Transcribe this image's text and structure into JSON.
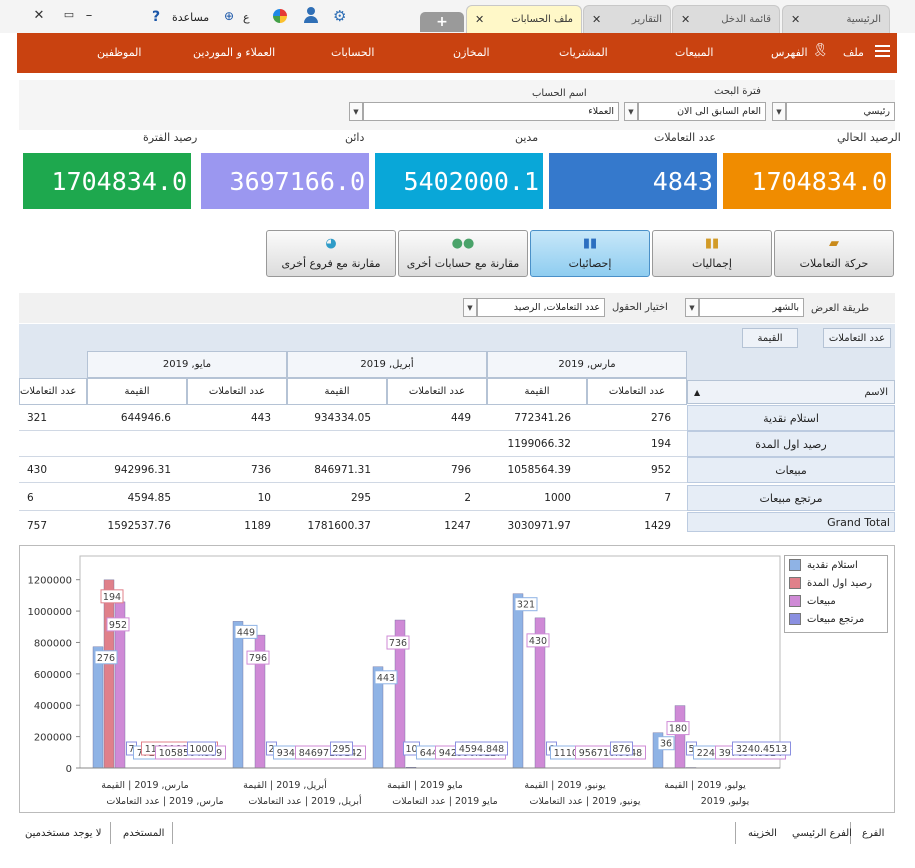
{
  "window": {
    "help_label": "مساعدة",
    "lang_label": "ع"
  },
  "tabs": [
    {
      "label": "الرئيسية"
    },
    {
      "label": "قائمة الدخل"
    },
    {
      "label": "التقارير"
    },
    {
      "label": "ملف الحسابات"
    }
  ],
  "menu": {
    "items": [
      "ملف",
      "الفهرس",
      "المبيعات",
      "المشتريات",
      "المخازن",
      "الحسابات",
      "العملاء و الموردين",
      "الموظفين"
    ]
  },
  "filters": {
    "period_label": "فترة البحث",
    "period_value": "العام السابق الى الان",
    "branch_value": "رئيسي",
    "account_label": "اسم الحساب",
    "account_value": "العملاء"
  },
  "kpis": [
    {
      "label": "الرصيد الحالي",
      "value": "1704834.0",
      "color": "#f08c00"
    },
    {
      "label": "عدد التعاملات",
      "value": "4843",
      "color": "#3579cc"
    },
    {
      "label": "مدين",
      "value": "5402000.1",
      "color": "#09a7d8"
    },
    {
      "label": "دائن",
      "value": "3697166.0",
      "color": "#9b97f0"
    },
    {
      "label": "رصيد الفترة",
      "value": "1704834.0",
      "color": "#1ea84e"
    }
  ],
  "buttons": [
    "حركة التعاملات",
    "إجماليات",
    "إحصائيات",
    "مقارنة مع حسابات أخرى",
    "مقارنة مع فروع أخرى"
  ],
  "options": {
    "view_label": "طريقة العرض",
    "view_value": "بالشهر",
    "fields_label": "اختيار الحقول",
    "fields_value": "عدد التعاملات, الرصيد"
  },
  "grid": {
    "field_chips": [
      "عدد التعاملات",
      "القيمة"
    ],
    "name_header": "الاسم",
    "months": [
      "مارس, 2019",
      "أبريل, 2019",
      "مايو, 2019"
    ],
    "count_header": "عدد التعاملات",
    "value_header": "القيمة",
    "rows": [
      {
        "name": "استلام نقدية",
        "cells": [
          "276",
          "772341.26",
          "449",
          "934334.05",
          "443",
          "644946.6",
          "321"
        ]
      },
      {
        "name": "رصيد اول المدة",
        "cells": [
          "194",
          "1199066.32",
          "",
          "",
          "",
          "",
          ""
        ]
      },
      {
        "name": "مبيعات",
        "cells": [
          "952",
          "1058564.39",
          "796",
          "846971.31",
          "736",
          "942996.31",
          "430"
        ]
      },
      {
        "name": "مرتجع مبيعات",
        "cells": [
          "7",
          "1000",
          "2",
          "295",
          "10",
          "4594.85",
          "6"
        ]
      },
      {
        "name": "Grand Total",
        "cells": [
          "1429",
          "3030971.97",
          "1247",
          "1781600.37",
          "1189",
          "1592537.76",
          "757"
        ]
      }
    ]
  },
  "chart_data": {
    "type": "bar",
    "series_colors": [
      "#8fb3e5",
      "#e0808a",
      "#cf8ad6",
      "#8a8fe0"
    ],
    "legend": [
      "استلام نقدية",
      "رصيد اول المدة",
      "مبيعات",
      "مرتجع مبيعات"
    ],
    "legend_position": "top-right",
    "ylim": [
      0,
      1300000
    ],
    "yticks": [
      "0",
      "200000",
      "400000",
      "600000",
      "800000",
      "1000000",
      "1200000"
    ],
    "groups": [
      {
        "label": "مارس, 2019 | القيمة",
        "values": [
          772341.2611,
          1199066.3188,
          1058564.389,
          1000
        ]
      },
      {
        "label": "مارس, 2019 | عدد التعاملات",
        "values": [
          276,
          194,
          952,
          7
        ]
      },
      {
        "label": "أبريل, 2019 | القيمة",
        "values": [
          934334.0532,
          0,
          846971.3142,
          295
        ]
      },
      {
        "label": "أبريل, 2019 | عدد التعاملات",
        "values": [
          449,
          0,
          796,
          2
        ]
      },
      {
        "label": "مايو, 2019 | القيمة",
        "values": [
          644946.601,
          0,
          942996.3127,
          4594.848
        ]
      },
      {
        "label": "مايو, 2019 | عدد التعاملات",
        "values": [
          443,
          0,
          736,
          10
        ]
      },
      {
        "label": "يونيو, 2019 | القيمة",
        "values": [
          1110743.2959,
          0,
          956710.8648,
          876
        ]
      },
      {
        "label": "يونيو, 2019 | عدد التعاملات",
        "values": [
          321,
          0,
          430,
          6
        ]
      },
      {
        "label": "يوليو, 2019 | القيمة",
        "values": [
          224794.5376,
          0,
          397690.9324,
          3240.4513
        ]
      },
      {
        "label": "يوليو, 2019 | عدد التعاملات",
        "values": [
          36,
          0,
          180,
          5
        ]
      }
    ],
    "point_labels": [
      "276",
      "194",
      "952",
      "7",
      "772341.2611",
      "1199066.3188",
      "1058564.389",
      "1000",
      "449",
      "796",
      "2",
      "934334.0532",
      "846971.3142",
      "295",
      "443",
      "736",
      "10",
      "644946.601",
      "942996.3127",
      "4594.848",
      "321",
      "430",
      "6",
      "1110743.2959",
      "956710.8648",
      "876",
      "36",
      "180",
      "5",
      "224794.5376",
      "397690.9324",
      "3240.4513"
    ],
    "xlabels_row1": [
      "مارس, 2019 | القيمة",
      "أبريل, 2019 | القيمة",
      "مايو 2019 | القيمة",
      "يونيو, 2019 | القيمة",
      "يوليو, 2019 | القيمة"
    ],
    "xlabels_row2": [
      "مارس, 2019 | عدد التعاملات",
      "أبريل, 2019 | عدد التعاملات",
      "مايو 2019 | عدد التعاملات",
      "يونيو, 2019 | عدد التعاملات",
      "يوليو, 2019"
    ]
  },
  "status": {
    "branch_label": "الفرع",
    "branch_value": "الفرع الرئيسي",
    "safe_label": "الخزينه",
    "user_label": "المستخدم",
    "users_label": "لا يوجد مستخدمين"
  }
}
